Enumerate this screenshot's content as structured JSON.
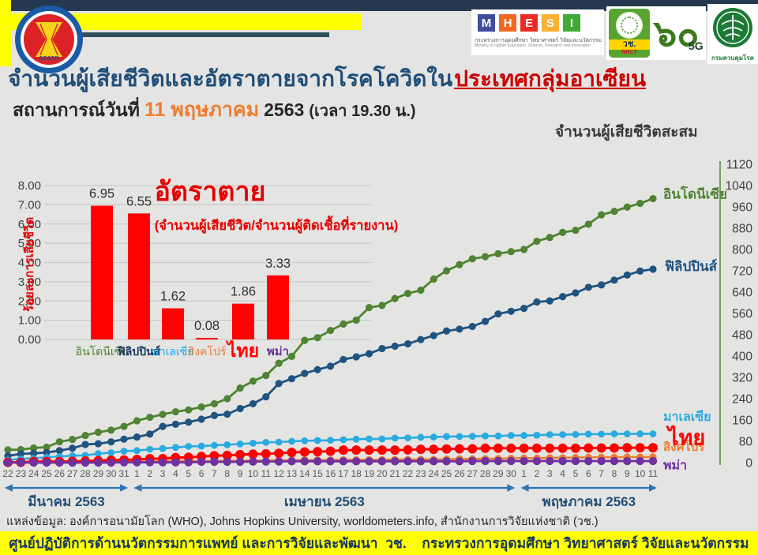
{
  "page": {
    "background": "#e4e4e2",
    "accent_yellow": "#ffff00",
    "navy_bar": "#24384f",
    "teal_line": "#2f505a"
  },
  "header": {
    "title": "จำนวนผู้เสียชีวิตและอัตราตายจากโรคโควิดใน",
    "title_highlight": "ประเทศกลุ่มอาเซียน",
    "situation_label": "สถานการณ์วันที่",
    "situation_date": "11 พฤษภาคม",
    "situation_year": "2563",
    "situation_time": "(เวลา 19.30 น.)",
    "right_axis_title": "จำนวนผู้เสียชีวิตสะสม"
  },
  "logos": {
    "asean_wordmark": "asean",
    "mhesi": {
      "letters": [
        "M",
        "H",
        "E",
        "S",
        "I"
      ],
      "tile_colors": [
        "#3f4d9e",
        "#f26722",
        "#ee2a24",
        "#f9b233",
        "#3faa35"
      ],
      "thai_line": "กระทรวงการอุดมศึกษา วิทยาศาสตร์ วิจัยและนวัตกรรม",
      "eng_line": "Ministry of Higher Education, Science, Research and Innovation"
    },
    "nrct": {
      "thai_abbr": "วช.",
      "eng_abbr": "NRCT"
    },
    "anniversary": {
      "numeral": "๖๐",
      "suffix": "5G"
    },
    "ddc": {
      "name": "กรมควบคุมโรค"
    }
  },
  "chart_data": [
    {
      "type": "bar",
      "title": "อัตราตาย",
      "subtitle": "(จำนวนผู้เสียชีวิต/จำนวนผู้ติดเชื้อที่รายงาน)",
      "ylabel": "ร้อยละการเสียชีวิต",
      "categories": [
        "อินโดนีเซีย",
        "ฟิลิปปินส์",
        "มาเลเซีย",
        "สิงคโปร์",
        "ไทย",
        "พม่า"
      ],
      "category_colors": [
        "#4e8433",
        "#17365d",
        "#00b0f0",
        "#ed7d31",
        "#ff0000",
        "#7030a0"
      ],
      "values": [
        6.95,
        6.55,
        1.62,
        0.08,
        1.86,
        3.33
      ],
      "bar_color": "#fe0000",
      "ylim": [
        0,
        8
      ],
      "ytick_step": 1,
      "grid": true,
      "tick_color": "#3f3f3f",
      "value_label_color": "#303030",
      "accent": "#e60000"
    },
    {
      "type": "line",
      "x_labels": [
        "22",
        "23",
        "24",
        "25",
        "26",
        "27",
        "28",
        "29",
        "30",
        "31",
        "1",
        "2",
        "3",
        "4",
        "5",
        "6",
        "7",
        "8",
        "9",
        "10",
        "11",
        "12",
        "13",
        "14",
        "15",
        "16",
        "17",
        "18",
        "19",
        "20",
        "21",
        "22",
        "23",
        "24",
        "25",
        "26",
        "27",
        "28",
        "29",
        "30",
        "1",
        "2",
        "3",
        "4",
        "5",
        "6",
        "7",
        "8",
        "9",
        "10",
        "11"
      ],
      "months": [
        {
          "label": "มีนาคม 2563",
          "from": 0,
          "to": 9
        },
        {
          "label": "เมษายน 2563",
          "from": 10,
          "to": 39
        },
        {
          "label": "พฤษภาคม 2563",
          "from": 40,
          "to": 50
        }
      ],
      "ylim": [
        0,
        1120
      ],
      "ytick_step": 80,
      "grid": false,
      "legend_position": "right-of-line-ends",
      "axis_color": "#6f9456",
      "tick_color": "#3f3f3f",
      "date_color": "#595959",
      "month_arrow_color": "#2e74b5",
      "month_label_color": "#1f4e79",
      "series": [
        {
          "name": "อินโดนีเซีย",
          "color": "#4e8433",
          "values": [
            48,
            49,
            55,
            58,
            78,
            87,
            102,
            114,
            122,
            136,
            157,
            170,
            181,
            191,
            198,
            209,
            221,
            240,
            280,
            306,
            327,
            373,
            399,
            459,
            469,
            496,
            520,
            535,
            582,
            590,
            616,
            635,
            647,
            689,
            720,
            743,
            765,
            773,
            784,
            792,
            800,
            831,
            845,
            864,
            872,
            895,
            930,
            943,
            959,
            973,
            991
          ]
        },
        {
          "name": "ฟิลิปปินส์",
          "color": "#1f5380",
          "values": [
            25,
            33,
            35,
            38,
            45,
            54,
            68,
            71,
            78,
            88,
            96,
            107,
            136,
            144,
            152,
            163,
            177,
            182,
            203,
            221,
            247,
            297,
            315,
            335,
            349,
            362,
            387,
            397,
            409,
            428,
            437,
            446,
            462,
            477,
            494,
            501,
            511,
            530,
            558,
            568,
            579,
            603,
            607,
            623,
            637,
            658,
            667,
            685,
            704,
            719,
            726
          ]
        },
        {
          "name": "มาเลเซีย",
          "color": "#29abe2",
          "values": [
            10,
            14,
            16,
            20,
            23,
            26,
            27,
            34,
            37,
            43,
            45,
            50,
            53,
            57,
            61,
            62,
            65,
            67,
            70,
            73,
            76,
            77,
            80,
            82,
            83,
            84,
            86,
            88,
            89,
            89,
            92,
            93,
            95,
            96,
            98,
            98,
            99,
            100,
            100,
            102,
            102,
            103,
            105,
            105,
            106,
            107,
            107,
            108,
            108,
            108,
            108
          ]
        },
        {
          "name": "สิงคโปร์",
          "color": "#ed7d31",
          "values": [
            2,
            2,
            2,
            2,
            2,
            2,
            2,
            3,
            3,
            3,
            3,
            4,
            5,
            6,
            6,
            6,
            6,
            7,
            7,
            8,
            8,
            9,
            9,
            10,
            10,
            10,
            11,
            11,
            11,
            11,
            12,
            12,
            12,
            12,
            13,
            14,
            14,
            15,
            15,
            16,
            17,
            17,
            18,
            18,
            19,
            20,
            20,
            20,
            21,
            21,
            21
          ]
        },
        {
          "name": "ไทย",
          "color": "#fe0000",
          "values": [
            1,
            1,
            4,
            4,
            4,
            5,
            6,
            7,
            9,
            10,
            12,
            15,
            15,
            19,
            20,
            23,
            26,
            27,
            30,
            32,
            33,
            35,
            38,
            40,
            41,
            43,
            47,
            47,
            47,
            47,
            47,
            48,
            50,
            50,
            51,
            52,
            52,
            54,
            54,
            54,
            54,
            54,
            54,
            54,
            54,
            55,
            55,
            55,
            56,
            56,
            56
          ]
        },
        {
          "name": "พม่า",
          "color": "#7030a0",
          "values": [
            0,
            0,
            0,
            0,
            0,
            0,
            0,
            0,
            0,
            1,
            1,
            1,
            1,
            1,
            1,
            3,
            3,
            3,
            3,
            4,
            4,
            4,
            5,
            5,
            5,
            5,
            5,
            5,
            5,
            5,
            5,
            5,
            5,
            5,
            5,
            5,
            6,
            6,
            6,
            6,
            6,
            6,
            6,
            6,
            6,
            6,
            6,
            6,
            6,
            6,
            6
          ]
        }
      ]
    }
  ],
  "source_line": "แหล่งข้อมูล: องค์การอนามัยโลก (WHO), Johns Hopkins University, worldometers.info, สำนักงานการวิจัยแห่งชาติ (วช.)",
  "footer_bar": "ศูนย์ปฏิบัติการด้านนวัตกรรมการแพทย์ และการวิจัยและพัฒนา  วช.    กระทรวงการอุดมศึกษา วิทยาศาสตร์ วิจัยและนวัตกรรม"
}
